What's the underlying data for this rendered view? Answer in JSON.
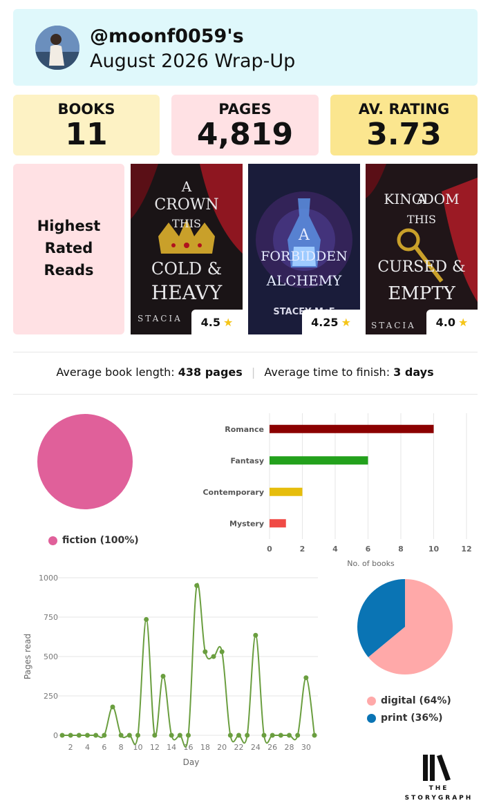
{
  "header": {
    "handle": "@moonf0059's",
    "subtitle": "August 2026 Wrap-Up"
  },
  "stats": {
    "books_label": "BOOKS",
    "books_value": "11",
    "pages_label": "PAGES",
    "pages_value": "4,819",
    "rating_label": "AV. RATING",
    "rating_value": "3.73"
  },
  "colors": {
    "header_bg": "#dff8fb",
    "books_bg": "#fdf2c4",
    "pages_bg": "#ffe1e4",
    "rating_bg": "#fbe68f",
    "panel_bg": "#ffe1e4"
  },
  "highest_rated": {
    "line1": "Highest",
    "line2": "Rated",
    "line3": "Reads",
    "books": [
      {
        "title_words": [
          "A",
          "CROWN",
          "THIS",
          "COLD &",
          "HEAVY"
        ],
        "author": "STACIA",
        "rating": "4.5",
        "star_icon": "star-icon"
      },
      {
        "title_words": [
          "A",
          "FORBIDDEN",
          "ALCHEMY"
        ],
        "author": "STACEY McE",
        "rating": "4.25",
        "star_icon": "star-icon"
      },
      {
        "title_words": [
          "A",
          "KINGDOM",
          "THIS",
          "CURSED &",
          "EMPTY"
        ],
        "author": "STACIA",
        "rating": "4.0",
        "star_icon": "star-icon"
      }
    ]
  },
  "averages": {
    "length_label": "Average book length:",
    "length_value": "438 pages",
    "time_label": "Average time to finish:",
    "time_value": "3 days"
  },
  "chart_data": [
    {
      "type": "pie",
      "labels": [
        "fiction (100%)"
      ],
      "values": [
        100
      ],
      "colors": [
        "#e0609a"
      ],
      "legend_position": "bottom"
    },
    {
      "type": "bar",
      "orientation": "horizontal",
      "categories": [
        "Romance",
        "Fantasy",
        "Contemporary",
        "Mystery"
      ],
      "values": [
        10,
        6,
        2,
        1
      ],
      "colors": [
        "#8b0000",
        "#23a11c",
        "#e6bd0c",
        "#f04a45"
      ],
      "xlabel": "No. of books",
      "xlim": [
        0,
        12
      ],
      "xticks": [
        "0",
        "2",
        "4",
        "6",
        "8",
        "10",
        "12"
      ],
      "grid": true
    },
    {
      "type": "line",
      "x": [
        1,
        2,
        3,
        4,
        5,
        6,
        7,
        8,
        9,
        10,
        11,
        12,
        13,
        14,
        15,
        16,
        17,
        18,
        19,
        20,
        21,
        22,
        23,
        24,
        25,
        26,
        27,
        28,
        29,
        30,
        31
      ],
      "y": [
        0,
        0,
        0,
        0,
        0,
        0,
        180,
        0,
        0,
        0,
        735,
        0,
        375,
        0,
        0,
        0,
        950,
        530,
        500,
        530,
        0,
        0,
        0,
        635,
        0,
        0,
        0,
        0,
        0,
        365,
        0
      ],
      "color": "#6a9e3f",
      "xlabel": "Day",
      "ylabel": "Pages read",
      "ylim": [
        0,
        1000
      ],
      "yticks": [
        "0",
        "250",
        "500",
        "750",
        "1000"
      ],
      "xticks": [
        "2",
        "4",
        "6",
        "8",
        "10",
        "12",
        "14",
        "16",
        "18",
        "20",
        "22",
        "24",
        "26",
        "28",
        "30"
      ],
      "grid": true
    },
    {
      "type": "pie",
      "labels": [
        "digital (64%)",
        "print (36%)"
      ],
      "values": [
        64,
        36
      ],
      "colors": [
        "#ffa9a9",
        "#0a74b4"
      ],
      "legend_position": "bottom"
    }
  ],
  "logo": {
    "line1": "THE",
    "line2": "STORYGRAPH"
  }
}
